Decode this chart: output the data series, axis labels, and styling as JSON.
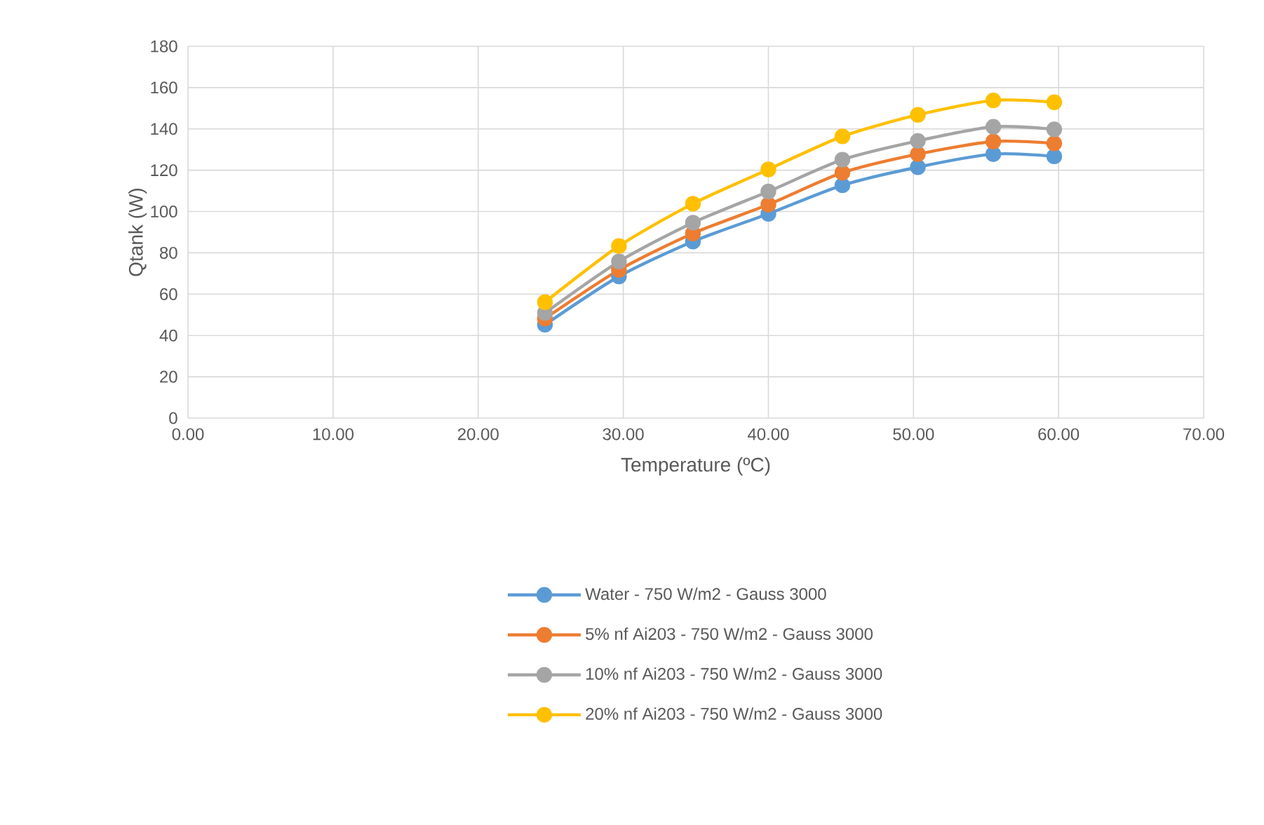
{
  "chart_data": {
    "type": "line",
    "xlabel": "Temperature (ºC)",
    "ylabel": "Qtank (W)",
    "x": [
      24.6,
      29.7,
      34.8,
      40.0,
      45.1,
      50.3,
      55.5,
      59.7
    ],
    "series": [
      {
        "name": "Water - 750 W/m2 - Gauss 3000",
        "color": "#5b9bd5",
        "values": [
          45.2,
          68.6,
          85.5,
          98.9,
          112.7,
          121.5,
          127.8,
          126.7
        ]
      },
      {
        "name": "5% nf Ai203 - 750 W/m2 - Gauss 3000",
        "color": "#ed7d31",
        "values": [
          48.2,
          71.7,
          89.4,
          103.4,
          118.8,
          127.8,
          133.9,
          133.0
        ]
      },
      {
        "name": "10% nf Ai203 - 750 W/m2 - Gauss 3000",
        "color": "#a5a5a5",
        "values": [
          50.9,
          75.8,
          94.6,
          109.7,
          125.1,
          134.2,
          141.0,
          139.8
        ]
      },
      {
        "name": "20% nf Ai203 - 750 W/m2 - Gauss 3000",
        "color": "#ffc000",
        "values": [
          56.1,
          83.3,
          103.8,
          120.4,
          136.4,
          146.8,
          153.8,
          152.9
        ]
      }
    ],
    "xlim": [
      0,
      70
    ],
    "ylim": [
      0,
      180
    ],
    "xticks": [
      {
        "value": 0,
        "label": "0.00"
      },
      {
        "value": 10,
        "label": "10.00"
      },
      {
        "value": 20,
        "label": "20.00"
      },
      {
        "value": 30,
        "label": "30.00"
      },
      {
        "value": 40,
        "label": "40.00"
      },
      {
        "value": 50,
        "label": "50.00"
      },
      {
        "value": 60,
        "label": "60.00"
      },
      {
        "value": 70,
        "label": "70.00"
      }
    ],
    "yticks": [
      0,
      20,
      40,
      60,
      80,
      100,
      120,
      140,
      160,
      180
    ],
    "grid": true,
    "legend": "bottom",
    "marker": "circle",
    "line_style": "solid"
  }
}
